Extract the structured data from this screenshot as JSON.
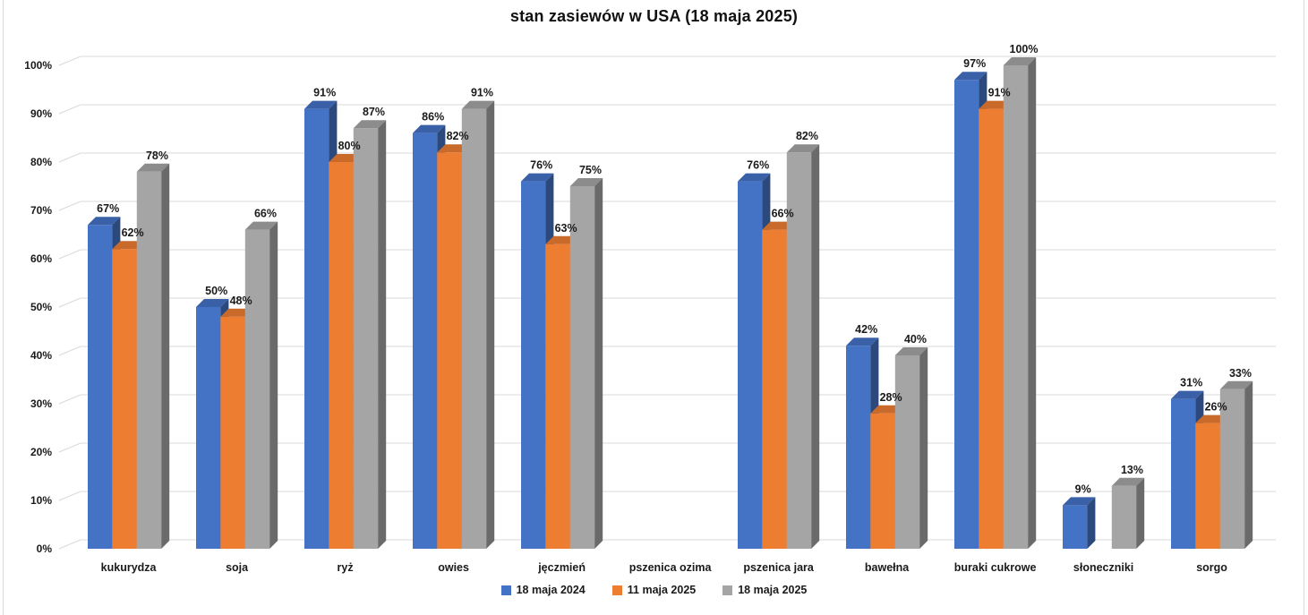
{
  "title": "stan zasiewów w USA (18 maja 2025)",
  "chart_data": {
    "type": "bar",
    "style": "3d-clustered-column",
    "title": "stan zasiewów w USA (18 maja 2025)",
    "categories": [
      "kukurydza",
      "soja",
      "ryż",
      "owies",
      "jęczmień",
      "pszenica ozima",
      "pszenica jara",
      "bawełna",
      "buraki cukrowe",
      "słoneczniki",
      "sorgo"
    ],
    "series": [
      {
        "name": "18 maja 2024",
        "color": "#4472C4",
        "values": [
          67,
          50,
          91,
          86,
          76,
          null,
          76,
          42,
          97,
          9,
          31
        ]
      },
      {
        "name": "11 maja 2025",
        "color": "#ED7D31",
        "values": [
          62,
          48,
          80,
          82,
          63,
          null,
          66,
          28,
          91,
          null,
          26
        ]
      },
      {
        "name": "18 maja 2025",
        "color": "#A5A5A5",
        "values": [
          78,
          66,
          87,
          91,
          75,
          null,
          82,
          40,
          100,
          13,
          33
        ]
      }
    ],
    "ylim": [
      0,
      100
    ],
    "ytick_step": 10,
    "ytick_labels": [
      "0%",
      "10%",
      "20%",
      "30%",
      "40%",
      "50%",
      "60%",
      "70%",
      "80%",
      "90%",
      "100%"
    ],
    "ytick_format": "percent",
    "data_label_format": "percent",
    "grid": true,
    "legend_position": "bottom"
  },
  "colors": {
    "grid": "#D9D9D9",
    "frame": "#D9D9D9",
    "text": "#1a1a1a",
    "title_text": "#111111"
  }
}
